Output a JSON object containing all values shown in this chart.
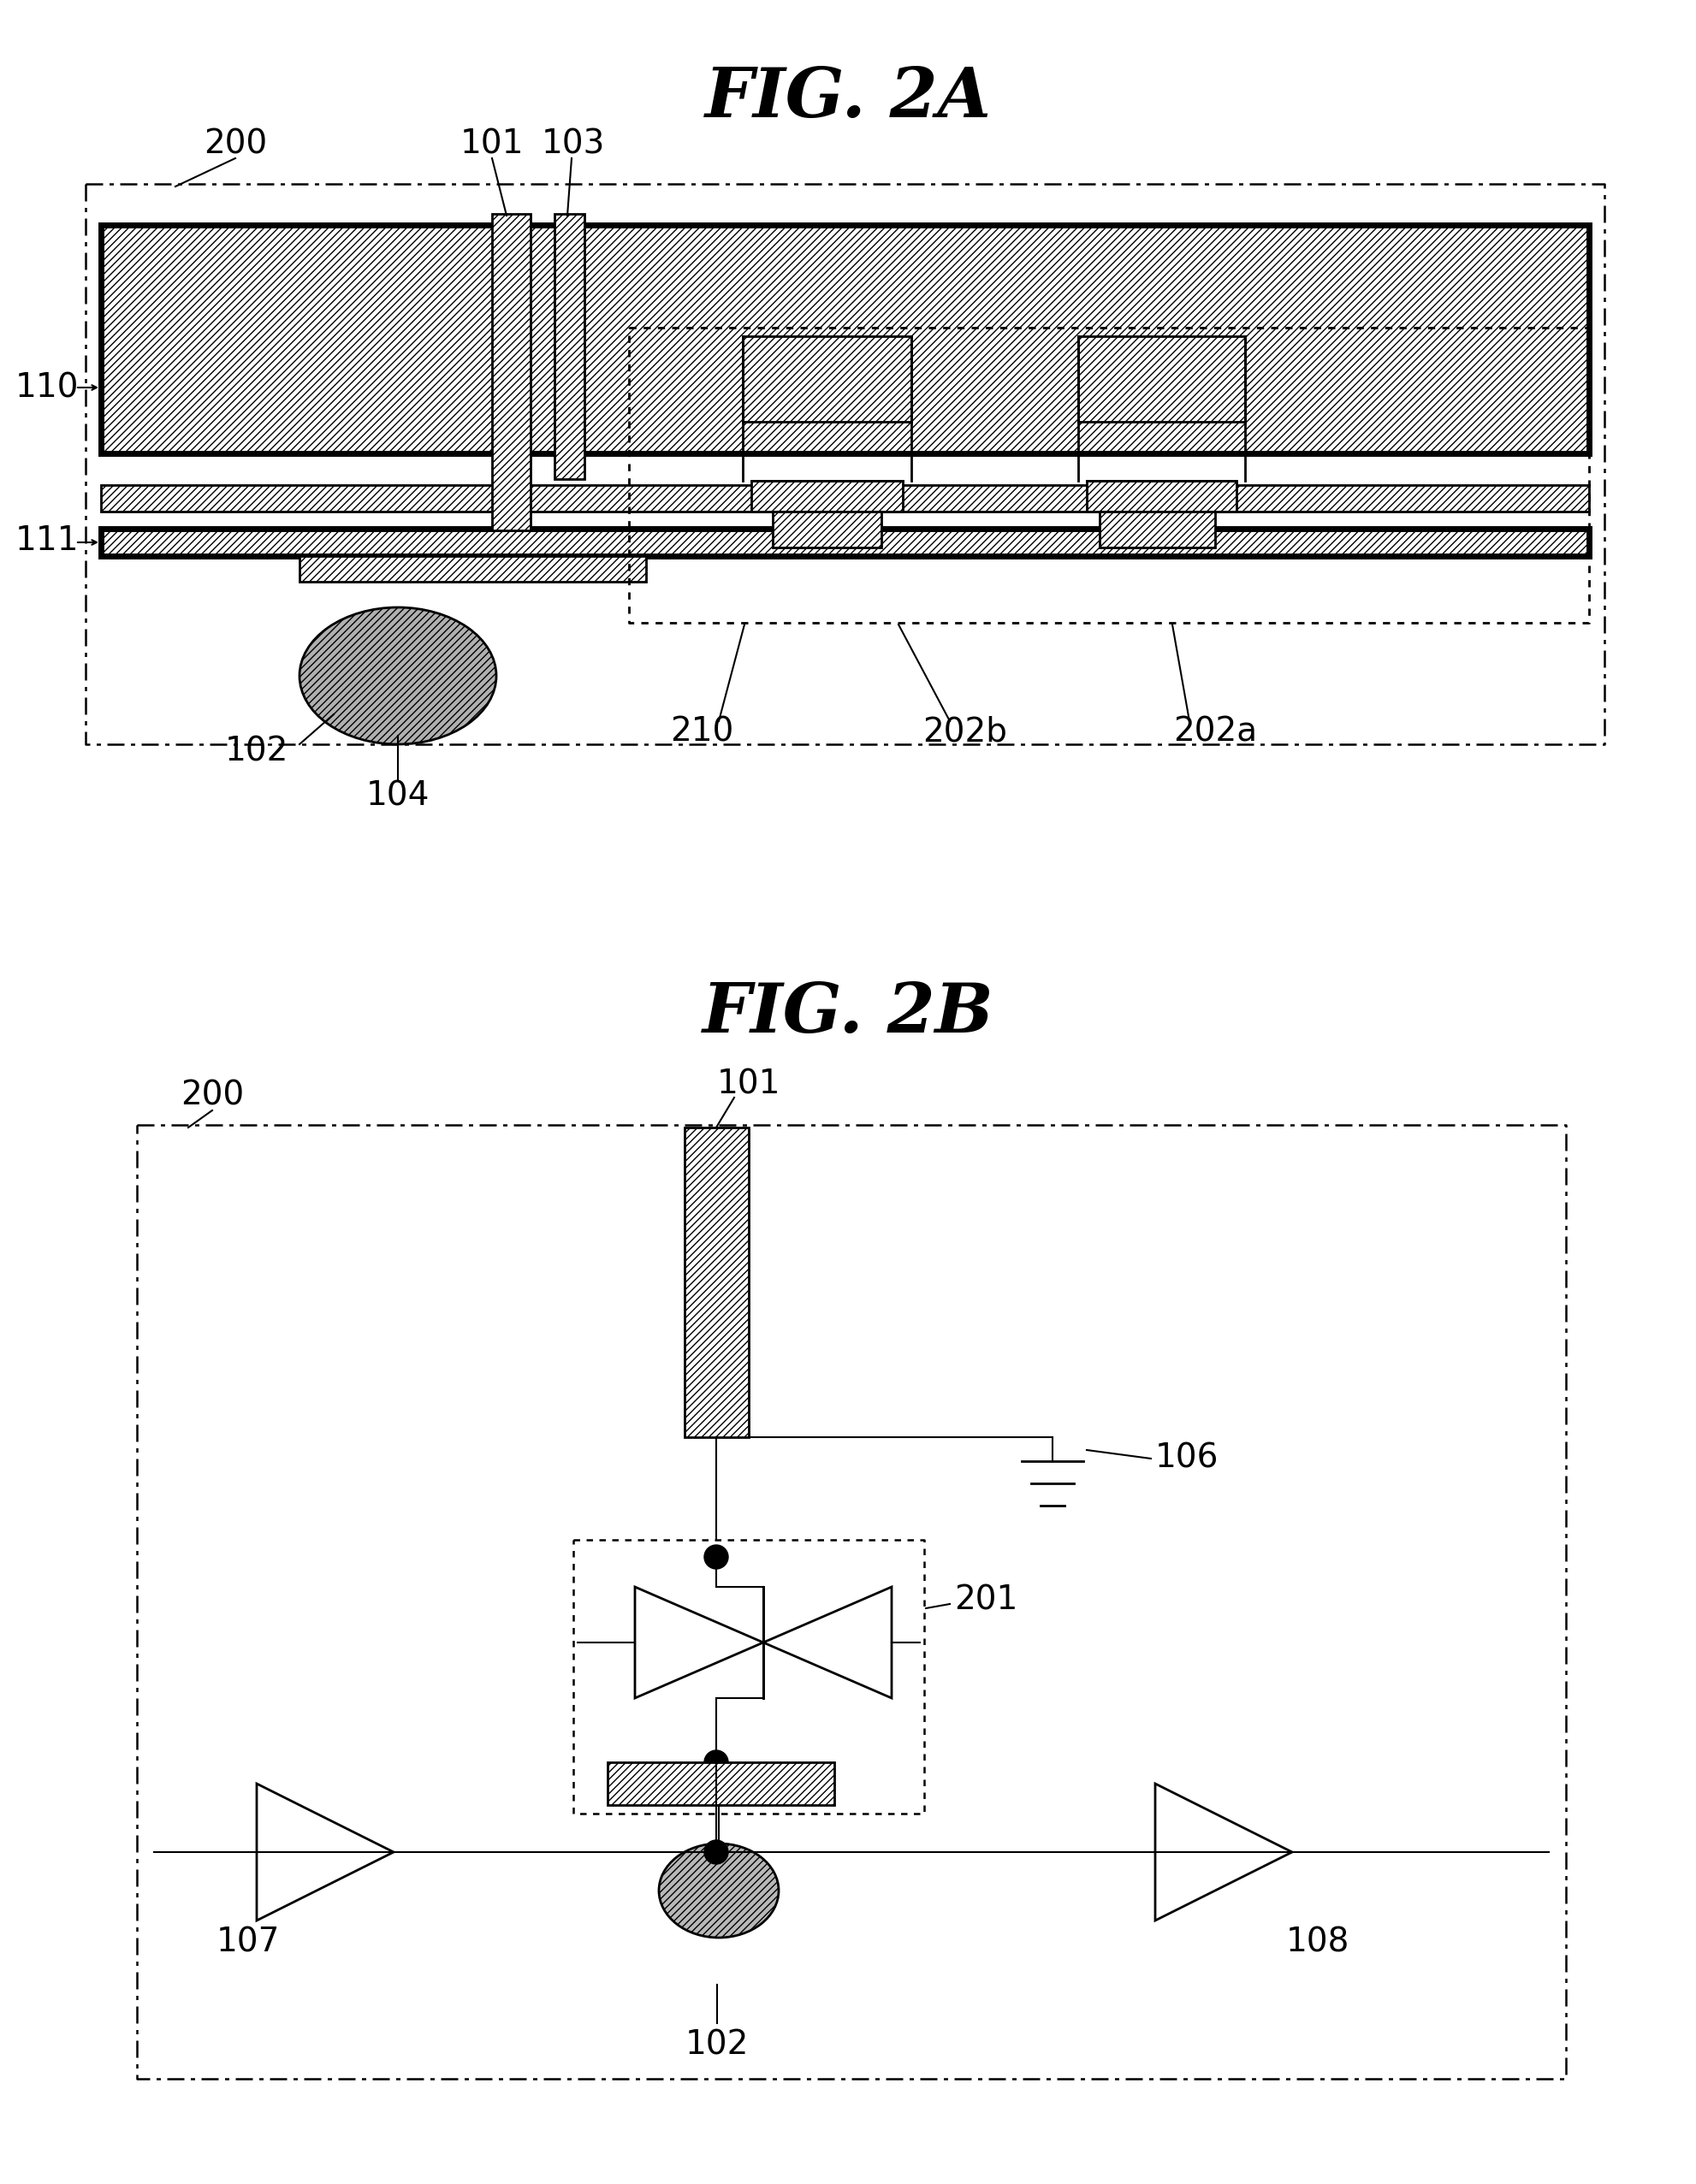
{
  "bg_color": "#ffffff",
  "fig2a_title": "FIG. 2A",
  "fig2b_title": "FIG. 2B",
  "font_size_title": 58,
  "font_size_label": 28,
  "lw": 2.0,
  "lw_thick": 5.0,
  "lw_thin": 1.5
}
